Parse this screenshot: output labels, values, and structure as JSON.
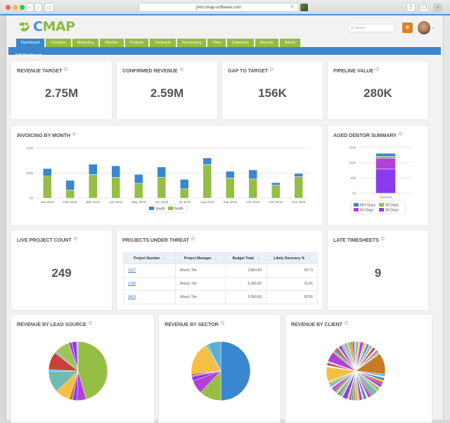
{
  "browser": {
    "url": "jmd.cmap-software.com",
    "back_icon": "chevron-left-icon",
    "forward_icon": "chevron-right-icon",
    "sidebar_icon": "sidebar-icon",
    "reload_icon": "reload-icon",
    "share_icon": "share-icon",
    "tabs_icon": "tabs-icon",
    "new_tab_label": "+"
  },
  "header": {
    "logo_c": "C",
    "logo_rest": "MAP",
    "search_placeholder": "Search",
    "bulb_icon": "☀",
    "avatar_caret": "⌄"
  },
  "nav": {
    "tabs": [
      {
        "label": "Dashboard",
        "active": true
      },
      {
        "label": "Contacts"
      },
      {
        "label": "Marketing"
      },
      {
        "label": "Pipeline"
      },
      {
        "label": "Projects"
      },
      {
        "label": "Contracts"
      },
      {
        "label": "Resourcing"
      },
      {
        "label": "Time"
      },
      {
        "label": "Expenses"
      },
      {
        "label": "Reports"
      },
      {
        "label": "Admin"
      }
    ],
    "subnav_label": "Edit Dashboard"
  },
  "help_glyph": "?",
  "kpis": {
    "revenue_target": {
      "title": "REVENUE TARGET",
      "value": "2.75M"
    },
    "confirmed_revenue": {
      "title": "CONFIRMED REVENUE",
      "value": "2.59M"
    },
    "gap_to_target": {
      "title": "GAP TO TARGET",
      "value": "156K"
    },
    "pipeline_value": {
      "title": "PIPELINE VALUE",
      "value": "280K"
    },
    "live_project_count": {
      "title": "LIVE PROJECT COUNT",
      "value": "249"
    },
    "late_timesheets": {
      "title": "LATE TIMESHEETS",
      "value": "9"
    }
  },
  "projects_under_threat": {
    "title": "PROJECTS UNDER THREAT",
    "sort_glyph": "↕",
    "columns": [
      "Project Number",
      "Project Manager",
      "Budget Total",
      "Likely Recovery %"
    ],
    "rows": [
      [
        "9137",
        "Wood, Tim",
        "3,804.80",
        "53.73"
      ],
      [
        "9188",
        "Wood, Tim",
        "5,265.80",
        "15.91"
      ],
      [
        "9404",
        "Wood, Tim",
        "5,500.00",
        "65.56"
      ]
    ]
  },
  "chart_data": [
    {
      "id": "invoicing",
      "type": "bar",
      "stacked": true,
      "title": "INVOICING BY MONTH",
      "categories": [
        "Jan 2016",
        "Feb 2016",
        "Mar 2016",
        "Apr 2016",
        "May 2016",
        "Jun 2016",
        "Jul 2016",
        "Aug 2016",
        "Sep 2016",
        "Oct 2016",
        "Nov 2016",
        "Dec 2016"
      ],
      "series": [
        {
          "name": "North",
          "color": "#95be45",
          "values": [
            176,
            65,
            190,
            167,
            120,
            168,
            74,
            270,
            161,
            154,
            104,
            172
          ]
        },
        {
          "name": "South",
          "color": "#3a87d1",
          "values": [
            61,
            78,
            82,
            92,
            70,
            82,
            76,
            52,
            54,
            72,
            20,
            26
          ]
        }
      ],
      "legend_order": [
        "South",
        "North"
      ],
      "units": "k",
      "yticks": [
        "0k",
        "200k",
        "400k"
      ],
      "ylim": [
        0,
        400
      ],
      "grid": true,
      "legend": "bottom-center",
      "xlabel": "",
      "ylabel": ""
    },
    {
      "id": "aged_debtor",
      "type": "bar",
      "stacked": true,
      "title": "AGED DEBTOR SUMMARY",
      "categories": [
        "Invoiced"
      ],
      "series": [
        {
          "name": "30 Days",
          "color": "#8a3bf0",
          "values": [
            80
          ]
        },
        {
          "name": "60 Days",
          "color": "#b63fd8",
          "values": [
            35
          ]
        },
        {
          "name": "90 Days",
          "color": "#95be45",
          "values": [
            6
          ]
        },
        {
          "name": "90+ Days",
          "color": "#3a87d1",
          "values": [
            10
          ]
        }
      ],
      "legend_order": [
        "90+ Days",
        "90 Days",
        "60 Days",
        "30 Days"
      ],
      "units": "k",
      "yticks": [
        "0k",
        "50k",
        "100k",
        "150k"
      ],
      "ylim": [
        0,
        150
      ],
      "grid": true,
      "legend": "bottom-center"
    },
    {
      "id": "lead_source",
      "type": "pie",
      "title": "REVENUE BY LEAD SOURCE",
      "slices": [
        {
          "value": 46,
          "color": "#95be45"
        },
        {
          "value": 5,
          "color": "#b63fd8"
        },
        {
          "value": 2.5,
          "color": "#8a3bf0"
        },
        {
          "value": 2,
          "color": "#c97a26"
        },
        {
          "value": 8,
          "color": "#f4bf44"
        },
        {
          "value": 12,
          "color": "#6fbcb0"
        },
        {
          "value": 1,
          "color": "#5aaed6"
        },
        {
          "value": 10,
          "color": "#c9413a"
        },
        {
          "value": 0.8,
          "color": "#5aaed6"
        },
        {
          "value": 8.5,
          "color": "#9cc459"
        },
        {
          "value": 1.8,
          "color": "#b63fd8"
        },
        {
          "value": 2.6,
          "color": "#8a3bf0"
        },
        {
          "value": 0.8,
          "color": "#7ab8e6"
        }
      ]
    },
    {
      "id": "sector",
      "type": "pie",
      "title": "REVENUE BY SECTOR",
      "slices": [
        {
          "value": 50,
          "color": "#3a87d1"
        },
        {
          "value": 12,
          "color": "#95be45"
        },
        {
          "value": 7.5,
          "color": "#b63fd8"
        },
        {
          "value": 2.5,
          "color": "#8a3bf0"
        },
        {
          "value": 0.8,
          "color": "#c97a26"
        },
        {
          "value": 0.8,
          "color": "#c9413a"
        },
        {
          "value": 18,
          "color": "#f4bf44"
        },
        {
          "value": 1.2,
          "color": "#6fbcb0"
        },
        {
          "value": 7.2,
          "color": "#5aaed6"
        }
      ]
    },
    {
      "id": "client",
      "type": "pie",
      "title": "REVENUE BY CLIENT",
      "slices_note": "many small client slices",
      "slices": [
        {
          "value": 1.2,
          "color": "#95be45"
        },
        {
          "value": 0.8,
          "color": "#a6d9f0"
        },
        {
          "value": 1.5,
          "color": "#b63fd8"
        },
        {
          "value": 0.9,
          "color": "#f4bf44"
        },
        {
          "value": 0.7,
          "color": "#c9e0a0"
        },
        {
          "value": 1.0,
          "color": "#3a87d1"
        },
        {
          "value": 0.6,
          "color": "#e8a0c8"
        },
        {
          "value": 0.9,
          "color": "#6fbcb0"
        },
        {
          "value": 0.7,
          "color": "#f7d98a"
        },
        {
          "value": 1.1,
          "color": "#c9413a"
        },
        {
          "value": 0.8,
          "color": "#d8ecf8"
        },
        {
          "value": 0.6,
          "color": "#8a3bf0"
        },
        {
          "value": 0.9,
          "color": "#9cc459"
        },
        {
          "value": 0.5,
          "color": "#f0c8a0"
        },
        {
          "value": 9.5,
          "color": "#c97a26"
        },
        {
          "value": 1.0,
          "color": "#5aaed6"
        },
        {
          "value": 0.7,
          "color": "#e0e0e0"
        },
        {
          "value": 1.2,
          "color": "#3a87d1"
        },
        {
          "value": 0.8,
          "color": "#f4bf44"
        },
        {
          "value": 0.9,
          "color": "#c9413a"
        },
        {
          "value": 1.5,
          "color": "#b63fd8"
        },
        {
          "value": 0.6,
          "color": "#a6d9f0"
        },
        {
          "value": 1.1,
          "color": "#95be45"
        },
        {
          "value": 0.8,
          "color": "#e8a0c8"
        },
        {
          "value": 2.8,
          "color": "#6fbcb0"
        },
        {
          "value": 0.7,
          "color": "#c9413a"
        },
        {
          "value": 1.0,
          "color": "#8a3bf0"
        },
        {
          "value": 0.9,
          "color": "#f7d98a"
        },
        {
          "value": 1.3,
          "color": "#3a87d1"
        },
        {
          "value": 0.6,
          "color": "#d8ecf8"
        },
        {
          "value": 1.4,
          "color": "#b63fd8"
        },
        {
          "value": 0.8,
          "color": "#f4bf44"
        },
        {
          "value": 1.0,
          "color": "#9cc459"
        },
        {
          "value": 0.7,
          "color": "#c97a26"
        },
        {
          "value": 1.2,
          "color": "#5aaed6"
        },
        {
          "value": 0.9,
          "color": "#c9413a"
        },
        {
          "value": 0.8,
          "color": "#a6d9f0"
        },
        {
          "value": 2.2,
          "color": "#8a3bf0"
        },
        {
          "value": 0.6,
          "color": "#e8a0c8"
        },
        {
          "value": 1.1,
          "color": "#95be45"
        },
        {
          "value": 0.9,
          "color": "#3a87d1"
        },
        {
          "value": 0.7,
          "color": "#f7d98a"
        },
        {
          "value": 1.0,
          "color": "#6fbcb0"
        },
        {
          "value": 0.8,
          "color": "#c9413a"
        },
        {
          "value": 1.2,
          "color": "#b63fd8"
        },
        {
          "value": 0.6,
          "color": "#e0e0e0"
        },
        {
          "value": 0.9,
          "color": "#5aaed6"
        },
        {
          "value": 1.0,
          "color": "#95be45"
        },
        {
          "value": 0.7,
          "color": "#f0c8a0"
        },
        {
          "value": 6.5,
          "color": "#f4bf44"
        },
        {
          "value": 0.8,
          "color": "#d8ecf8"
        },
        {
          "value": 1.1,
          "color": "#c9413a"
        },
        {
          "value": 0.7,
          "color": "#a6d9f0"
        },
        {
          "value": 4.5,
          "color": "#b63fd8"
        },
        {
          "value": 0.9,
          "color": "#9cc459"
        },
        {
          "value": 0.8,
          "color": "#3a87d1"
        },
        {
          "value": 1.0,
          "color": "#c9413a"
        },
        {
          "value": 0.7,
          "color": "#f7d98a"
        },
        {
          "value": 1.2,
          "color": "#8a3bf0"
        },
        {
          "value": 0.8,
          "color": "#6fbcb0"
        },
        {
          "value": 1.0,
          "color": "#e8a0c8"
        },
        {
          "value": 0.9,
          "color": "#5aaed6"
        },
        {
          "value": 0.7,
          "color": "#f4bf44"
        },
        {
          "value": 1.1,
          "color": "#95be45"
        },
        {
          "value": 0.8,
          "color": "#c97a26"
        },
        {
          "value": 0.9,
          "color": "#b63fd8"
        },
        {
          "value": 0.6,
          "color": "#a6d9f0"
        }
      ]
    }
  ]
}
